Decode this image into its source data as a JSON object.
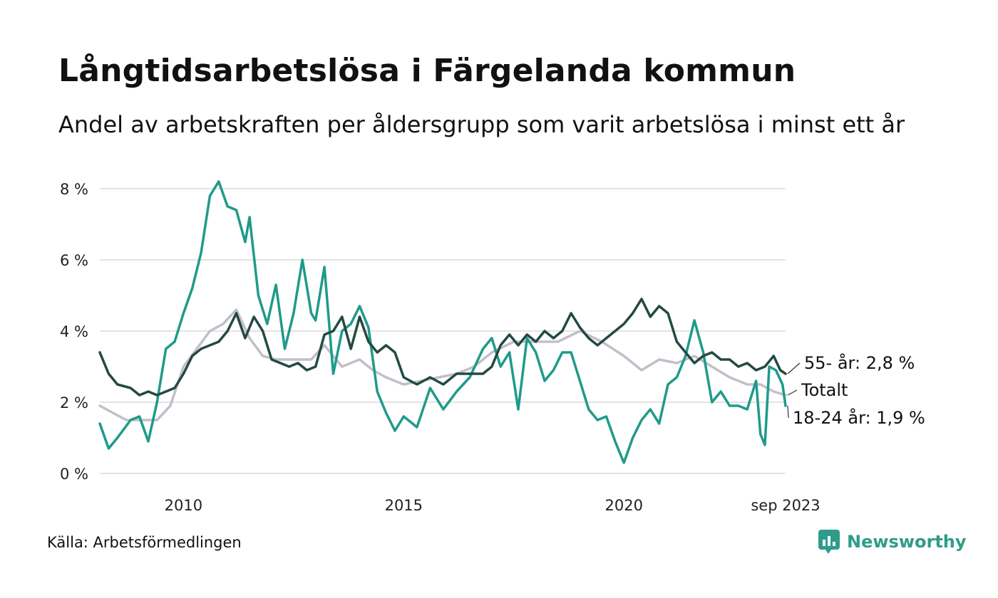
{
  "title": "Långtidsarbetslösa i Färgelanda kommun",
  "subtitle": "Andel av arbetskraften per åldersgrupp som varit arbetslösa i minst ett år",
  "source": "Källa: Arbetsförmedlingen",
  "brand": {
    "name": "Newsworthy",
    "icon": "newsworthy-logo-icon",
    "color": "#2f9c8a"
  },
  "chart_data": {
    "type": "line",
    "ylim": [
      0,
      8.5
    ],
    "xlim": [
      2008.1,
      2023.67
    ],
    "y_ticks": [
      0,
      2,
      4,
      6,
      8
    ],
    "y_tick_labels": [
      "0 %",
      "2 %",
      "4 %",
      "6 %",
      "8 %"
    ],
    "x_ticks": [
      2010,
      2015,
      2020,
      2023.67
    ],
    "x_tick_labels": [
      "2010",
      "2015",
      "2020",
      "sep 2023"
    ],
    "grid": true,
    "series": [
      {
        "name": "Totalt",
        "label": "Totalt",
        "color": "#c2bfca",
        "x": [
          2008.1,
          2008.4,
          2008.7,
          2009.0,
          2009.4,
          2009.7,
          2010.0,
          2010.3,
          2010.6,
          2010.9,
          2011.2,
          2011.5,
          2011.8,
          2012.1,
          2012.5,
          2012.9,
          2013.2,
          2013.6,
          2014.0,
          2014.3,
          2014.6,
          2015.0,
          2015.4,
          2015.8,
          2016.2,
          2016.6,
          2017.0,
          2017.5,
          2018.0,
          2018.5,
          2019.0,
          2019.5,
          2020.0,
          2020.4,
          2020.8,
          2021.2,
          2021.6,
          2022.0,
          2022.4,
          2022.8,
          2023.1,
          2023.4,
          2023.67
        ],
        "values": [
          1.9,
          1.7,
          1.5,
          1.5,
          1.5,
          1.9,
          3.0,
          3.5,
          4.0,
          4.2,
          4.6,
          3.8,
          3.3,
          3.2,
          3.2,
          3.2,
          3.6,
          3.0,
          3.2,
          2.9,
          2.7,
          2.5,
          2.6,
          2.7,
          2.8,
          3.0,
          3.4,
          3.7,
          3.7,
          3.7,
          4.0,
          3.7,
          3.3,
          2.9,
          3.2,
          3.1,
          3.3,
          3.0,
          2.7,
          2.5,
          2.5,
          2.3,
          2.2
        ]
      },
      {
        "name": "18-24 år",
        "label": "18-24 år: 1,9 %",
        "color": "#1f9a8a",
        "x": [
          2008.1,
          2008.3,
          2008.5,
          2008.8,
          2009.0,
          2009.2,
          2009.4,
          2009.6,
          2009.8,
          2010.0,
          2010.2,
          2010.4,
          2010.6,
          2010.8,
          2011.0,
          2011.2,
          2011.4,
          2011.5,
          2011.7,
          2011.9,
          2012.1,
          2012.3,
          2012.5,
          2012.7,
          2012.9,
          2013.0,
          2013.2,
          2013.4,
          2013.6,
          2013.8,
          2014.0,
          2014.2,
          2014.4,
          2014.6,
          2014.8,
          2015.0,
          2015.3,
          2015.6,
          2015.9,
          2016.2,
          2016.5,
          2016.8,
          2017.0,
          2017.2,
          2017.4,
          2017.6,
          2017.8,
          2018.0,
          2018.2,
          2018.4,
          2018.6,
          2018.8,
          2019.0,
          2019.2,
          2019.4,
          2019.6,
          2019.8,
          2020.0,
          2020.2,
          2020.4,
          2020.6,
          2020.8,
          2021.0,
          2021.2,
          2021.4,
          2021.6,
          2021.8,
          2022.0,
          2022.2,
          2022.4,
          2022.6,
          2022.8,
          2023.0,
          2023.1,
          2023.2,
          2023.3,
          2023.45,
          2023.6,
          2023.67
        ],
        "values": [
          1.4,
          0.7,
          1.0,
          1.5,
          1.6,
          0.9,
          2.0,
          3.5,
          3.7,
          4.5,
          5.2,
          6.2,
          7.8,
          8.2,
          7.5,
          7.4,
          6.5,
          7.2,
          5.0,
          4.2,
          5.3,
          3.5,
          4.5,
          6.0,
          4.5,
          4.3,
          5.8,
          2.8,
          4.0,
          4.2,
          4.7,
          4.1,
          2.3,
          1.7,
          1.2,
          1.6,
          1.3,
          2.4,
          1.8,
          2.3,
          2.7,
          3.5,
          3.8,
          3.0,
          3.4,
          1.8,
          3.8,
          3.4,
          2.6,
          2.9,
          3.4,
          3.4,
          2.6,
          1.8,
          1.5,
          1.6,
          0.9,
          0.3,
          1.0,
          1.5,
          1.8,
          1.4,
          2.5,
          2.7,
          3.3,
          4.3,
          3.4,
          2.0,
          2.3,
          1.9,
          1.9,
          1.8,
          2.6,
          1.1,
          0.8,
          3.0,
          2.9,
          2.5,
          1.9
        ]
      },
      {
        "name": "55- år",
        "label": "55- år: 2,8 %",
        "color": "#234a42",
        "x": [
          2008.1,
          2008.3,
          2008.5,
          2008.8,
          2009.0,
          2009.2,
          2009.4,
          2009.6,
          2009.8,
          2010.0,
          2010.2,
          2010.4,
          2010.6,
          2010.8,
          2011.0,
          2011.2,
          2011.4,
          2011.6,
          2011.8,
          2012.0,
          2012.2,
          2012.4,
          2012.6,
          2012.8,
          2013.0,
          2013.2,
          2013.4,
          2013.6,
          2013.8,
          2014.0,
          2014.2,
          2014.4,
          2014.6,
          2014.8,
          2015.0,
          2015.3,
          2015.6,
          2015.9,
          2016.2,
          2016.5,
          2016.8,
          2017.0,
          2017.2,
          2017.4,
          2017.6,
          2017.8,
          2018.0,
          2018.2,
          2018.4,
          2018.6,
          2018.8,
          2019.0,
          2019.2,
          2019.4,
          2019.6,
          2019.8,
          2020.0,
          2020.2,
          2020.4,
          2020.6,
          2020.8,
          2021.0,
          2021.2,
          2021.4,
          2021.6,
          2021.8,
          2022.0,
          2022.2,
          2022.4,
          2022.6,
          2022.8,
          2023.0,
          2023.2,
          2023.4,
          2023.55,
          2023.67
        ],
        "values": [
          3.4,
          2.8,
          2.5,
          2.4,
          2.2,
          2.3,
          2.2,
          2.3,
          2.4,
          2.8,
          3.3,
          3.5,
          3.6,
          3.7,
          4.0,
          4.5,
          3.8,
          4.4,
          4.0,
          3.2,
          3.1,
          3.0,
          3.1,
          2.9,
          3.0,
          3.9,
          4.0,
          4.4,
          3.5,
          4.4,
          3.7,
          3.4,
          3.6,
          3.4,
          2.7,
          2.5,
          2.7,
          2.5,
          2.8,
          2.8,
          2.8,
          3.0,
          3.6,
          3.9,
          3.6,
          3.9,
          3.7,
          4.0,
          3.8,
          4.0,
          4.5,
          4.1,
          3.8,
          3.6,
          3.8,
          4.0,
          4.2,
          4.5,
          4.9,
          4.4,
          4.7,
          4.5,
          3.7,
          3.4,
          3.1,
          3.3,
          3.4,
          3.2,
          3.2,
          3.0,
          3.1,
          2.9,
          3.0,
          3.3,
          2.9,
          2.8
        ]
      }
    ]
  }
}
